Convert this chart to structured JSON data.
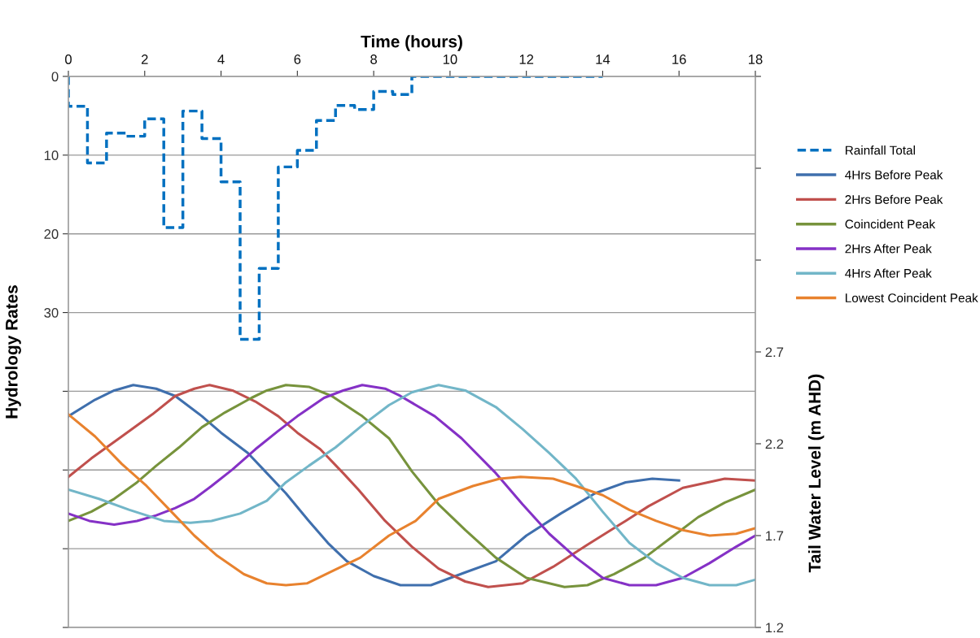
{
  "chart_data": {
    "type": "line",
    "xlabel": "Time (hours)",
    "ylabel": "Hydrology Rates",
    "y2label": "Tail Water Level (m AHD)",
    "xlim": [
      0,
      18
    ],
    "xticks": [
      0,
      2,
      4,
      6,
      8,
      10,
      12,
      14,
      16,
      18
    ],
    "ylim": [
      70,
      0
    ],
    "yticks": [
      0,
      10,
      20,
      30,
      {
        "value": 40,
        "label": null
      },
      {
        "value": 50,
        "label": null
      },
      {
        "value": 60,
        "label": null
      },
      {
        "value": 70,
        "label": null
      }
    ],
    "y2lim": [
      1.2,
      4.2
    ],
    "y2ticks": [
      1.2,
      1.7,
      2.2,
      2.7,
      {
        "value": 3.2,
        "label": null
      },
      {
        "value": 3.7,
        "label": null
      },
      {
        "value": 4.2,
        "label": null
      }
    ],
    "grid": "y",
    "legend": "right",
    "marker": "none",
    "series": [
      {
        "name": "Rainfall Total",
        "type": "step",
        "line_style": "dashed",
        "color": "#0070c0",
        "x": [
          0,
          0,
          0.5,
          1,
          1.5,
          2,
          2.5,
          3,
          3.5,
          4,
          4.5,
          5,
          5.5,
          6,
          6.5,
          7,
          7.5,
          8,
          8.5,
          9,
          14
        ],
        "values": [
          0,
          3.8,
          11.0,
          7.2,
          7.6,
          5.4,
          19.2,
          4.4,
          7.9,
          13.4,
          33.4,
          24.4,
          11.5,
          9.4,
          5.6,
          3.7,
          4.2,
          1.9,
          2.3,
          0,
          0
        ]
      },
      {
        "name": "4Hrs Before Peak",
        "axis": "y2",
        "color": "#3f6fad",
        "x": [
          0,
          0.7,
          1.2,
          1.7,
          2.3,
          2.8,
          3.5,
          4.0,
          4.7,
          5.2,
          5.7,
          6.3,
          6.8,
          7.3,
          8.0,
          8.7,
          9.5,
          10.4,
          11.2,
          12.0,
          12.9,
          13.8,
          14.6,
          15.3,
          16.0
        ],
        "values": [
          2.35,
          2.44,
          2.49,
          2.52,
          2.5,
          2.46,
          2.35,
          2.26,
          2.15,
          2.04,
          1.93,
          1.78,
          1.66,
          1.56,
          1.48,
          1.43,
          1.43,
          1.5,
          1.56,
          1.7,
          1.82,
          1.93,
          1.99,
          2.01,
          2.0
        ]
      },
      {
        "name": "2Hrs Before Peak",
        "axis": "y2",
        "color": "#c0504d",
        "x": [
          0,
          0.6,
          1.4,
          2.2,
          2.8,
          3.3,
          3.7,
          4.3,
          4.9,
          5.5,
          6.0,
          6.6,
          7.2,
          7.6,
          8.3,
          9.0,
          9.7,
          10.4,
          11.0,
          11.9,
          12.7,
          13.6,
          14.6,
          15.2,
          16.1,
          17.2,
          18.0
        ],
        "values": [
          2.02,
          2.12,
          2.24,
          2.36,
          2.46,
          2.5,
          2.52,
          2.49,
          2.43,
          2.35,
          2.26,
          2.17,
          2.04,
          1.95,
          1.78,
          1.64,
          1.52,
          1.45,
          1.42,
          1.44,
          1.53,
          1.65,
          1.78,
          1.86,
          1.96,
          2.01,
          2.0
        ]
      },
      {
        "name": "Coincident Peak",
        "axis": "y2",
        "color": "#77933c",
        "x": [
          0,
          0.6,
          1.2,
          1.8,
          2.3,
          2.9,
          3.5,
          4.1,
          4.8,
          5.2,
          5.7,
          6.3,
          6.9,
          7.7,
          8.4,
          9.0,
          9.7,
          10.4,
          11.2,
          12.0,
          13.0,
          13.6,
          14.3,
          15.1,
          15.8,
          16.5,
          17.2,
          18.0
        ],
        "values": [
          1.78,
          1.83,
          1.9,
          1.99,
          2.08,
          2.18,
          2.29,
          2.37,
          2.45,
          2.49,
          2.52,
          2.51,
          2.46,
          2.35,
          2.23,
          2.05,
          1.87,
          1.73,
          1.58,
          1.47,
          1.42,
          1.43,
          1.49,
          1.58,
          1.69,
          1.8,
          1.88,
          1.95
        ]
      },
      {
        "name": "2Hrs After Peak",
        "axis": "y2",
        "color": "#8531c6",
        "x": [
          0,
          0.55,
          1.2,
          1.8,
          2.3,
          2.8,
          3.3,
          3.75,
          4.3,
          4.9,
          5.5,
          6.0,
          6.7,
          7.2,
          7.7,
          8.3,
          8.7,
          9.6,
          10.3,
          11.2,
          11.9,
          12.6,
          13.3,
          14.0,
          14.7,
          15.4,
          16.1,
          16.8,
          17.5,
          18.0
        ],
        "values": [
          1.82,
          1.78,
          1.76,
          1.78,
          1.81,
          1.85,
          1.9,
          1.97,
          2.06,
          2.17,
          2.27,
          2.35,
          2.45,
          2.49,
          2.52,
          2.5,
          2.46,
          2.35,
          2.23,
          2.04,
          1.87,
          1.71,
          1.58,
          1.47,
          1.43,
          1.43,
          1.47,
          1.55,
          1.64,
          1.7
        ]
      },
      {
        "name": "4Hrs After Peak",
        "axis": "y2",
        "color": "#72b6c8",
        "x": [
          0,
          0.8,
          1.6,
          2.5,
          3.2,
          3.75,
          4.5,
          5.2,
          5.7,
          6.3,
          7.0,
          7.7,
          8.4,
          9.0,
          9.7,
          10.4,
          11.2,
          11.9,
          12.6,
          13.3,
          14.0,
          14.7,
          15.4,
          16.1,
          16.8,
          17.5,
          18.0
        ],
        "values": [
          1.95,
          1.9,
          1.84,
          1.78,
          1.77,
          1.78,
          1.82,
          1.89,
          1.99,
          2.08,
          2.18,
          2.3,
          2.41,
          2.48,
          2.52,
          2.49,
          2.4,
          2.28,
          2.15,
          2.01,
          1.83,
          1.66,
          1.55,
          1.47,
          1.43,
          1.43,
          1.46
        ]
      },
      {
        "name": "Lowest Coincident Peak",
        "axis": "y2",
        "color": "#e8822e",
        "x": [
          0,
          0.7,
          1.4,
          2.05,
          2.7,
          3.3,
          3.9,
          4.6,
          5.2,
          5.7,
          6.25,
          6.95,
          7.65,
          8.4,
          9.1,
          9.7,
          10.6,
          11.3,
          11.85,
          12.7,
          13.3,
          14.0,
          14.7,
          15.4,
          16.1,
          16.8,
          17.5,
          18.0
        ],
        "values": [
          2.36,
          2.24,
          2.09,
          1.97,
          1.83,
          1.7,
          1.59,
          1.49,
          1.44,
          1.43,
          1.44,
          1.51,
          1.58,
          1.7,
          1.78,
          1.9,
          1.97,
          2.01,
          2.02,
          2.01,
          1.97,
          1.92,
          1.84,
          1.78,
          1.73,
          1.7,
          1.71,
          1.74
        ]
      }
    ]
  }
}
